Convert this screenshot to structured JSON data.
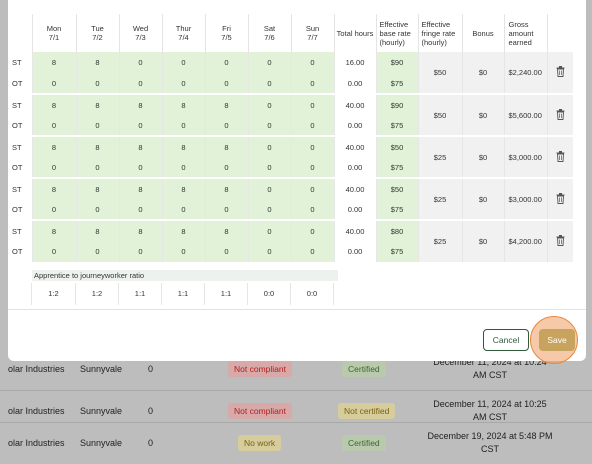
{
  "days": [
    {
      "name": "Mon",
      "date": "7/1"
    },
    {
      "name": "Tue",
      "date": "7/2"
    },
    {
      "name": "Wed",
      "date": "7/3"
    },
    {
      "name": "Thur",
      "date": "7/4"
    },
    {
      "name": "Fri",
      "date": "7/5"
    },
    {
      "name": "Sat",
      "date": "7/6"
    },
    {
      "name": "Sun",
      "date": "7/7"
    }
  ],
  "headers": {
    "total_hours": "Total hours",
    "effective_base": "Effective base rate (hourly)",
    "effective_fringe": "Effective fringe rate (hourly)",
    "bonus": "Bonus",
    "gross": "Gross amount earned"
  },
  "workers": [
    {
      "st": [
        "8",
        "8",
        "0",
        "0",
        "0",
        "0",
        "0"
      ],
      "st_total": "16.00",
      "st_base": "$90",
      "ot": [
        "0",
        "0",
        "0",
        "0",
        "0",
        "0",
        "0"
      ],
      "ot_total": "0.00",
      "ot_base": "$75",
      "fringe": "$50",
      "bonus": "$0",
      "gross": "$2,240.00"
    },
    {
      "st": [
        "8",
        "8",
        "8",
        "8",
        "8",
        "0",
        "0"
      ],
      "st_total": "40.00",
      "st_base": "$90",
      "ot": [
        "0",
        "0",
        "0",
        "0",
        "0",
        "0",
        "0"
      ],
      "ot_total": "0.00",
      "ot_base": "$75",
      "fringe": "$50",
      "bonus": "$0",
      "gross": "$5,600.00"
    },
    {
      "st": [
        "8",
        "8",
        "8",
        "8",
        "8",
        "0",
        "0"
      ],
      "st_total": "40.00",
      "st_base": "$50",
      "ot": [
        "0",
        "0",
        "0",
        "0",
        "0",
        "0",
        "0"
      ],
      "ot_total": "0.00",
      "ot_base": "$75",
      "fringe": "$25",
      "bonus": "$0",
      "gross": "$3,000.00"
    },
    {
      "st": [
        "8",
        "8",
        "8",
        "8",
        "8",
        "0",
        "0"
      ],
      "st_total": "40.00",
      "st_base": "$50",
      "ot": [
        "0",
        "0",
        "0",
        "0",
        "0",
        "0",
        "0"
      ],
      "ot_total": "0.00",
      "ot_base": "$75",
      "fringe": "$25",
      "bonus": "$0",
      "gross": "$3,000.00"
    },
    {
      "st": [
        "8",
        "8",
        "8",
        "8",
        "8",
        "0",
        "0"
      ],
      "st_total": "40.00",
      "st_base": "$80",
      "ot": [
        "0",
        "0",
        "0",
        "0",
        "0",
        "0",
        "0"
      ],
      "ot_total": "0.00",
      "ot_base": "$75",
      "fringe": "$25",
      "bonus": "$0",
      "gross": "$4,200.00"
    }
  ],
  "row_labels": {
    "st": "ST",
    "ot": "OT"
  },
  "ratio": {
    "title": "Apprentice to journeyworker ratio",
    "values": [
      "1:2",
      "1:2",
      "1:1",
      "1:1",
      "1:1",
      "0:0",
      "0:0"
    ]
  },
  "buttons": {
    "cancel": "Cancel",
    "save": "Save"
  },
  "background_rows": [
    {
      "company": "olar Industries",
      "city": "Sunnyvale",
      "count": "0",
      "compliance": "Not compliant",
      "certification": "Certified",
      "time": "December 11, 2024 at 10:24 AM CST"
    },
    {
      "company": "olar Industries",
      "city": "Sunnyvale",
      "count": "0",
      "compliance": "Not compliant",
      "certification": "Not certified",
      "time": "December 11, 2024 at 10:25 AM CST"
    },
    {
      "company": "olar Industries",
      "city": "Sunnyvale",
      "count": "0",
      "compliance": "No work",
      "certification": "Certified",
      "time": "December 19, 2024 at 5:48 PM CST"
    }
  ],
  "colors": {
    "accent_green": "#e2f2d8",
    "save": "#c7a35d",
    "highlight": "#ef9c60"
  }
}
